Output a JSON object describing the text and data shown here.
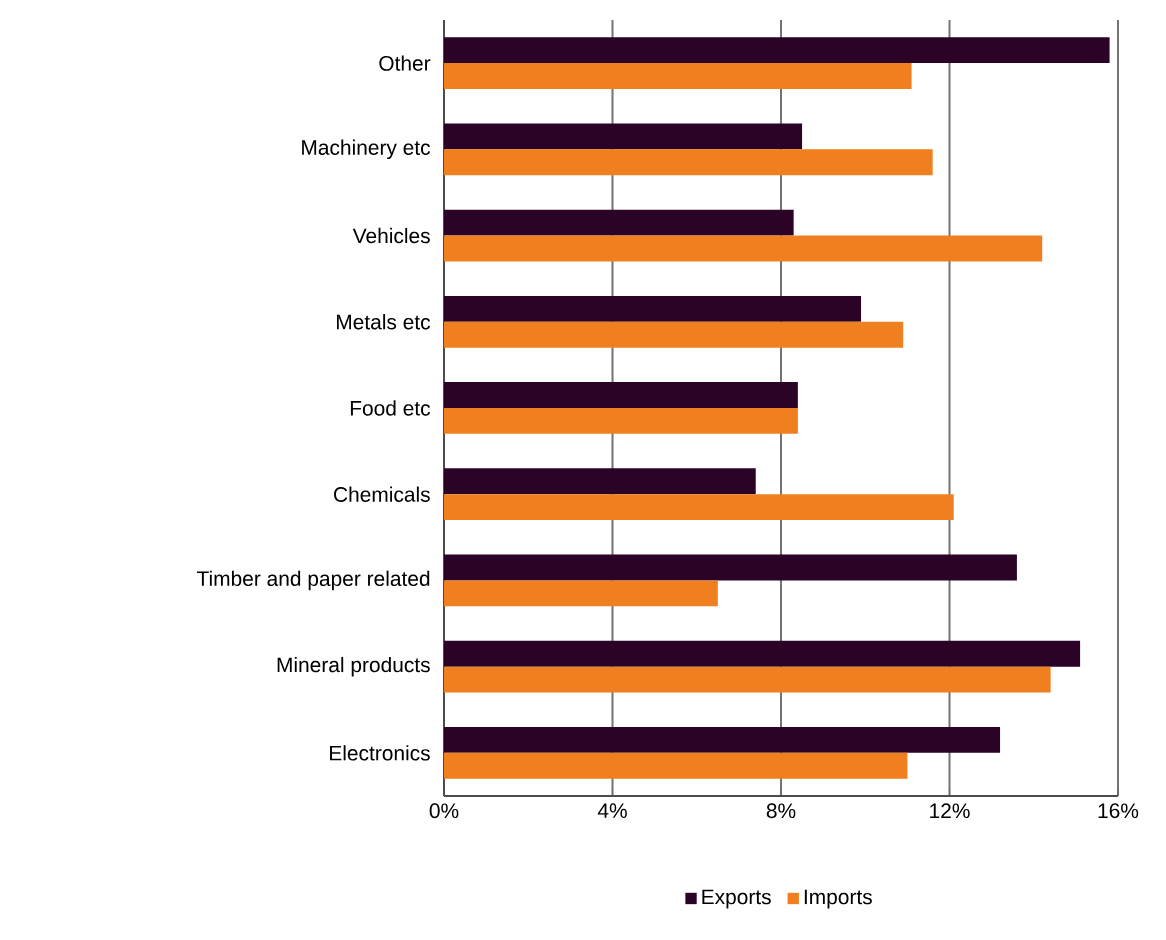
{
  "chart_data": {
    "type": "bar",
    "orientation": "horizontal",
    "categories": [
      "Other",
      "Machinery etc",
      "Vehicles",
      "Metals etc",
      "Food etc",
      "Chemicals",
      "Timber and paper related",
      "Mineral products",
      "Electronics"
    ],
    "series": [
      {
        "name": "Exports",
        "color": "#2a0327",
        "values": [
          15.8,
          8.5,
          8.3,
          9.9,
          8.4,
          7.4,
          13.6,
          15.1,
          13.2
        ]
      },
      {
        "name": "Imports",
        "color": "#ef7f1f",
        "values": [
          11.1,
          11.6,
          14.2,
          10.9,
          8.4,
          12.1,
          6.5,
          14.4,
          11.0
        ]
      }
    ],
    "xlim": [
      0,
      16
    ],
    "xticks": [
      {
        "value": 0,
        "label": "0%"
      },
      {
        "value": 4,
        "label": "4%"
      },
      {
        "value": 8,
        "label": "8%"
      },
      {
        "value": 12,
        "label": "12%"
      },
      {
        "value": 16,
        "label": "16%"
      }
    ],
    "grid": "x",
    "legend": "bottom"
  }
}
